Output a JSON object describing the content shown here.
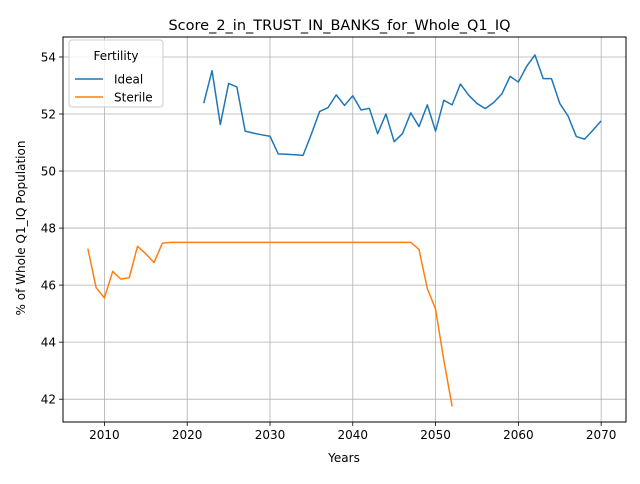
{
  "chart_data": {
    "type": "line",
    "title": "Score_2_in_TRUST_IN_BANKS_for_Whole_Q1_IQ",
    "xlabel": "Years",
    "ylabel": "% of Whole Q1_IQ Population",
    "xlim": [
      2005,
      2073
    ],
    "ylim": [
      41.2,
      54.7
    ],
    "xticks": [
      2010,
      2020,
      2030,
      2040,
      2050,
      2060,
      2070
    ],
    "yticks": [
      42,
      44,
      46,
      48,
      50,
      52,
      54
    ],
    "grid": true,
    "legend": {
      "title": "Fertility",
      "placement": "upper-left"
    },
    "series": [
      {
        "name": "Ideal",
        "color": "#1f77b4",
        "x": [
          2022,
          2023,
          2024,
          2025,
          2026,
          2027,
          2028,
          2029,
          2030,
          2031,
          2032,
          2033,
          2034,
          2035,
          2036,
          2037,
          2038,
          2039,
          2040,
          2041,
          2042,
          2043,
          2044,
          2045,
          2046,
          2047,
          2048,
          2049,
          2050,
          2051,
          2052,
          2053,
          2054,
          2055,
          2056,
          2057,
          2058,
          2059,
          2060,
          2061,
          2062,
          2063,
          2064,
          2065,
          2066,
          2067,
          2068,
          2069,
          2070
        ],
        "y": [
          52.38,
          53.52,
          51.63,
          53.07,
          52.95,
          51.4,
          51.33,
          51.27,
          51.22,
          50.6,
          50.59,
          50.57,
          50.55,
          51.3,
          52.09,
          52.22,
          52.67,
          52.3,
          52.64,
          52.14,
          52.2,
          51.31,
          52.0,
          51.03,
          51.31,
          52.04,
          51.56,
          52.32,
          51.4,
          52.48,
          52.32,
          53.05,
          52.66,
          52.37,
          52.19,
          52.4,
          52.7,
          53.32,
          53.12,
          53.67,
          54.07,
          53.24,
          53.24,
          52.37,
          51.93,
          51.21,
          51.12,
          51.43,
          51.76
        ]
      },
      {
        "name": "Sterile",
        "color": "#ff7f0e",
        "x": [
          2008,
          2009,
          2010,
          2011,
          2012,
          2013,
          2014,
          2015,
          2016,
          2017,
          2018,
          2019,
          2020,
          2025,
          2030,
          2035,
          2040,
          2045,
          2046,
          2047,
          2048,
          2049,
          2050,
          2051,
          2052
        ],
        "y": [
          47.28,
          45.91,
          45.55,
          46.48,
          46.21,
          46.26,
          47.36,
          47.1,
          46.79,
          47.47,
          47.5,
          47.5,
          47.5,
          47.5,
          47.5,
          47.5,
          47.5,
          47.5,
          47.5,
          47.5,
          47.25,
          45.88,
          45.16,
          43.36,
          41.75
        ]
      }
    ]
  }
}
